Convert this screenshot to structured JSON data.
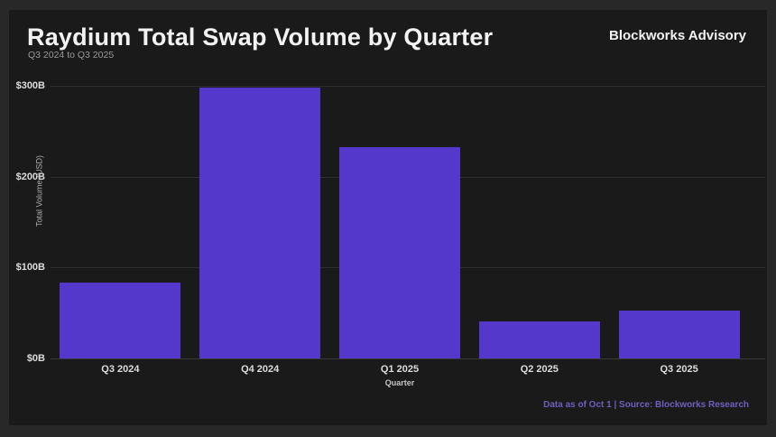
{
  "header": {
    "title": "Raydium Total Swap Volume by Quarter",
    "subtitle": "Q3 2024 to Q3 2025",
    "brand": "Blockworks Advisory"
  },
  "footer": {
    "note": "Data as of Oct 1 | Source: Blockworks Research"
  },
  "chart_data": {
    "type": "bar",
    "title": "Raydium Total Swap Volume by Quarter",
    "subtitle": "Q3 2024 to Q3 2025",
    "categories": [
      "Q3 2024",
      "Q4 2024",
      "Q1 2025",
      "Q2 2025",
      "Q3 2025"
    ],
    "values": [
      83,
      298,
      232,
      41,
      53
    ],
    "unit": "billions USD",
    "xlabel": "Quarter",
    "ylabel": "Total Volume (USD)",
    "ylim": [
      0,
      300
    ],
    "yticks": [
      {
        "value": 0,
        "label": "$0B"
      },
      {
        "value": 100,
        "label": "$100B"
      },
      {
        "value": 200,
        "label": "$200B"
      },
      {
        "value": 300,
        "label": "$300B"
      }
    ],
    "grid": true,
    "legend": false,
    "bar_color": "#5438cb"
  },
  "colors": {
    "page_bg": "#282828",
    "panel_bg": "#1a1a1a",
    "bar": "#5438cb",
    "grid": "#2f2f2f",
    "title_text": "#f2f2f2",
    "muted_text": "#9a9a9a",
    "tick_text": "#dcdcdc",
    "footer_text": "#6c60bd"
  }
}
